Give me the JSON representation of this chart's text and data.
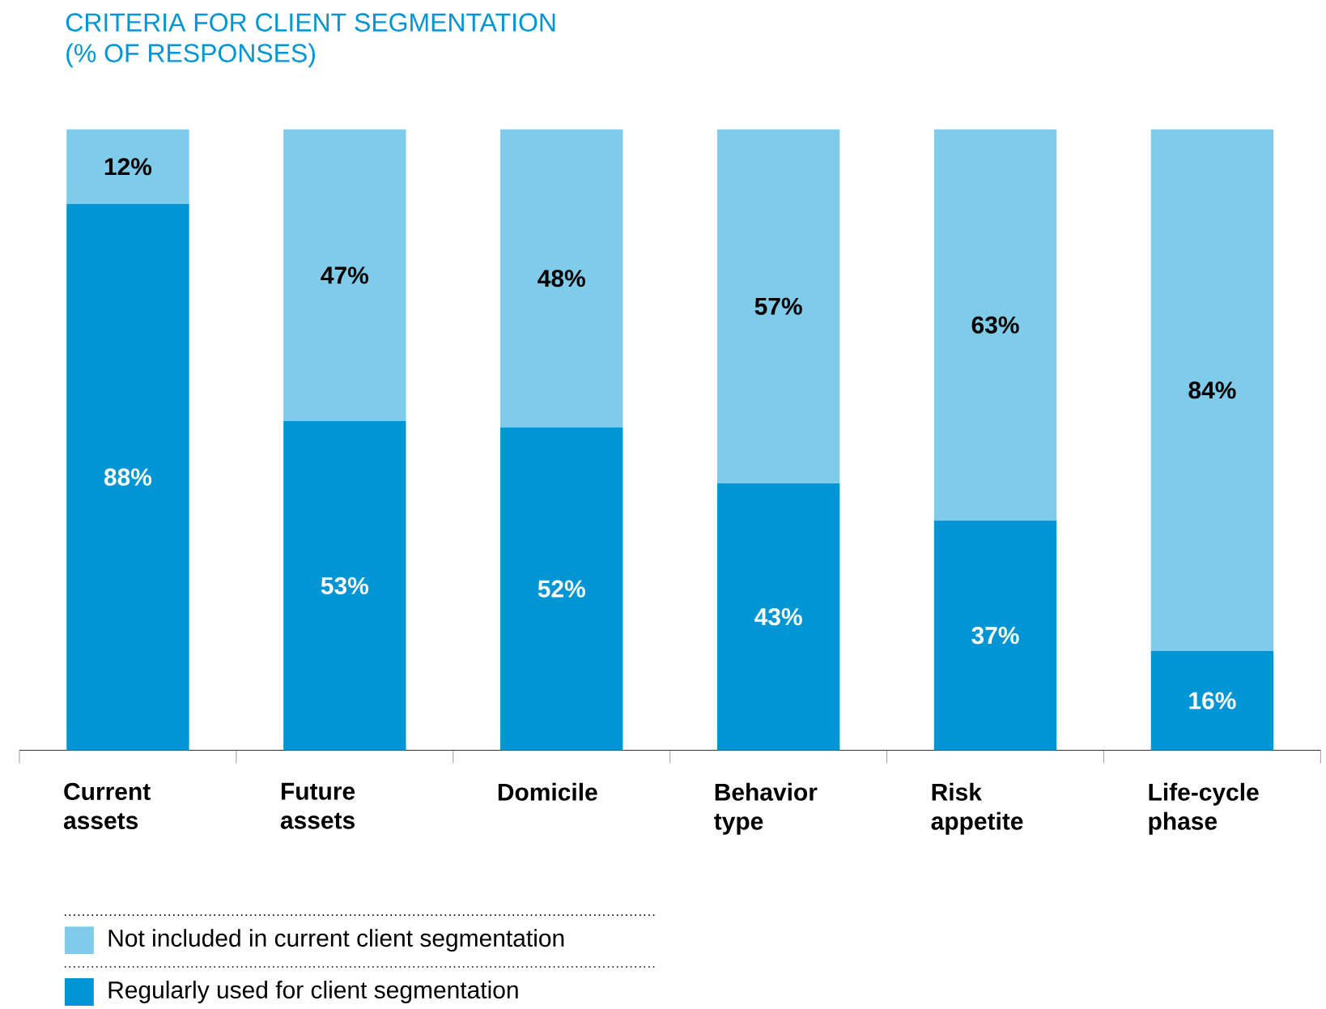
{
  "chart_data": {
    "type": "bar",
    "title": "CRITERIA FOR CLIENT SEGMENTATION",
    "subtitle": "(% OF RESPONSES)",
    "categories": [
      "Current assets",
      "Future assets",
      "Domicile",
      "Behavior type",
      "Risk appetite",
      "Life-cycle phase"
    ],
    "stacked": true,
    "ylim": [
      0,
      100
    ],
    "legend": "bottom",
    "series": [
      {
        "name": "Regularly used for client segmentation",
        "color": "#0095d5",
        "values": [
          88,
          53,
          52,
          43,
          37,
          16
        ],
        "value_labels": [
          "88%",
          "53%",
          "52%",
          "43%",
          "37%",
          "16%"
        ]
      },
      {
        "name": "Not included in current client segmentation",
        "color": "#7ecbea",
        "values": [
          12,
          47,
          48,
          57,
          63,
          84
        ],
        "value_labels": [
          "12%",
          "47%",
          "48%",
          "57%",
          "63%",
          "84%"
        ]
      }
    ]
  }
}
